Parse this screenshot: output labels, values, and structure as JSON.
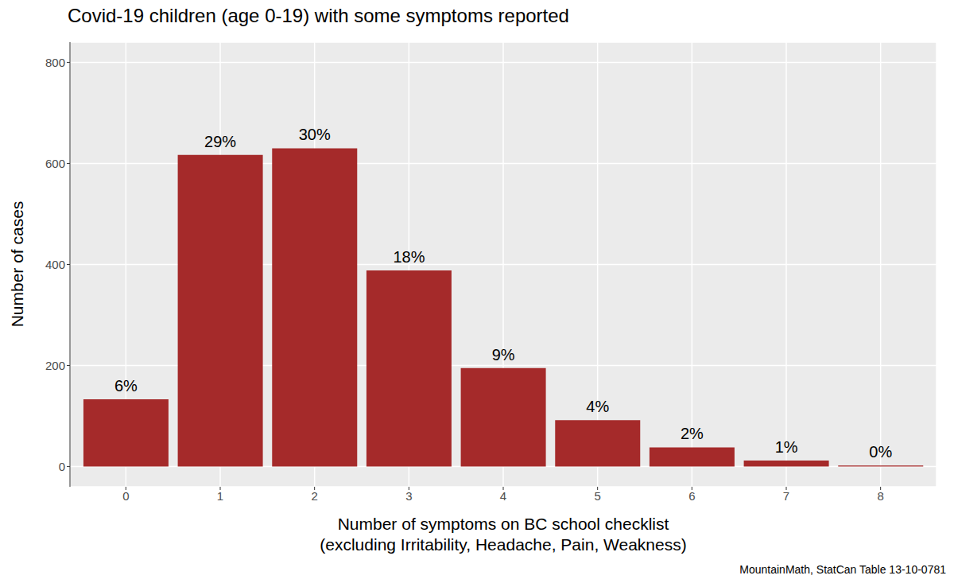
{
  "chart_data": {
    "type": "bar",
    "title": "Covid-19 children (age 0-19) with some symptoms reported",
    "x_label": "Number of symptoms on BC school checklist\n(excluding Irritability, Headache, Pain, Weakness)",
    "y_label": "Number of cases",
    "caption": "MountainMath, StatCan Table 13-10-0781",
    "categories": [
      "0",
      "1",
      "2",
      "3",
      "4",
      "5",
      "6",
      "7",
      "8"
    ],
    "values": [
      133,
      617,
      630,
      388,
      195,
      92,
      38,
      12,
      2
    ],
    "percent_labels": [
      "6%",
      "29%",
      "30%",
      "18%",
      "9%",
      "4%",
      "2%",
      "1%",
      "0%"
    ],
    "color": "#a52a2a",
    "ylim": [
      -40,
      840
    ],
    "yticks": [
      0,
      200,
      400,
      600,
      800
    ],
    "grid": true
  }
}
